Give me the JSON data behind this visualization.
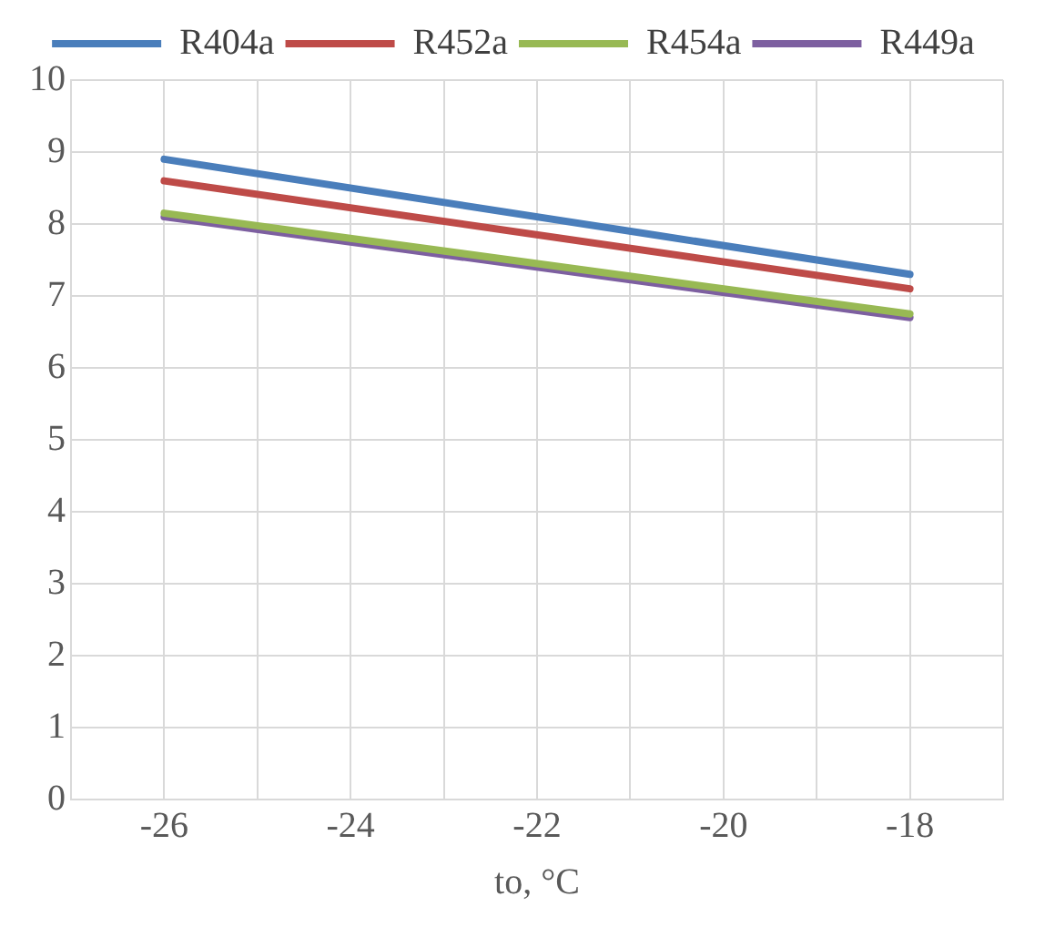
{
  "chart_data": {
    "type": "line",
    "xlabel": "to, °C",
    "x": [
      -26,
      -18
    ],
    "series": [
      {
        "name": "R404a",
        "color": "#4a7ebb",
        "values": [
          8.9,
          7.3
        ]
      },
      {
        "name": "R452a",
        "color": "#be4b48",
        "values": [
          8.6,
          7.1
        ]
      },
      {
        "name": "R454a",
        "color": "#98b954",
        "values": [
          8.15,
          6.75
        ]
      },
      {
        "name": "R449a",
        "color": "#7d5fa0",
        "values": [
          8.1,
          6.7
        ]
      }
    ],
    "xlim": [
      -27,
      -17
    ],
    "xticks": [
      {
        "value": -27,
        "label": null
      },
      -26,
      {
        "value": -25,
        "label": null
      },
      -24,
      {
        "value": -23,
        "label": null
      },
      -22,
      {
        "value": -21,
        "label": null
      },
      -20,
      {
        "value": -19,
        "label": null
      },
      -18,
      {
        "value": -17,
        "label": null
      }
    ],
    "ylim": [
      0,
      10
    ],
    "yticks": [
      0,
      1,
      2,
      3,
      4,
      5,
      6,
      7,
      8,
      9,
      10
    ],
    "grid": true,
    "legend": "top",
    "marker": "none",
    "line_style": "solid"
  }
}
